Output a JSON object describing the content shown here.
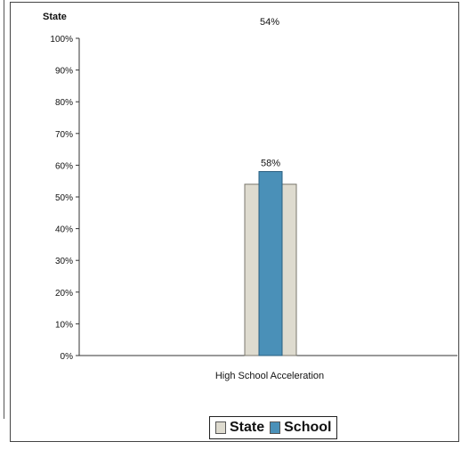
{
  "chart_data": {
    "type": "bar",
    "title": "",
    "xlabel": "",
    "ylabel": "State",
    "top_annotation": "54%",
    "categories": [
      "High School Acceleration"
    ],
    "series": [
      {
        "name": "State",
        "values": [
          54
        ],
        "color": "#dedbcf",
        "data_label": ""
      },
      {
        "name": "School",
        "values": [
          58
        ],
        "color": "#4a90b8",
        "data_label": "58%"
      }
    ],
    "ylim": [
      0,
      100
    ],
    "yticks": [
      "0%",
      "10%",
      "20%",
      "30%",
      "40%",
      "50%",
      "60%",
      "70%",
      "80%",
      "90%",
      "100%"
    ],
    "grid": false,
    "legend_position": "bottom"
  },
  "legend": {
    "state_label": "State",
    "school_label": "School"
  }
}
